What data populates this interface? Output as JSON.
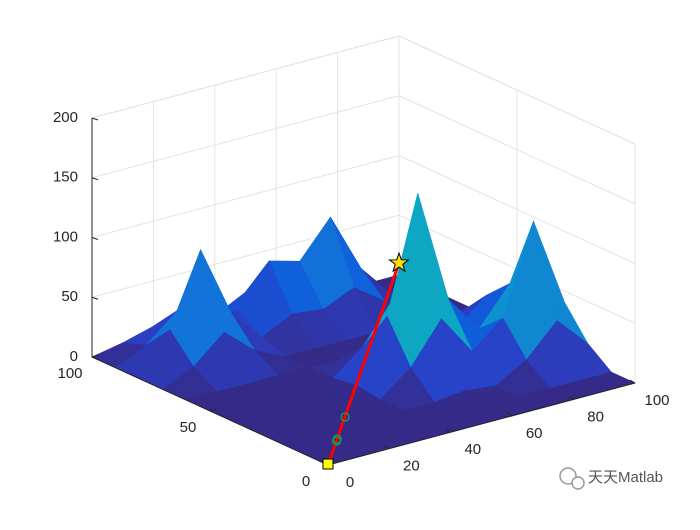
{
  "chart_data": {
    "type": "surface3d",
    "xlim": [
      0,
      100
    ],
    "ylim": [
      0,
      100
    ],
    "zlim": [
      0,
      200
    ],
    "xticks": [
      0,
      20,
      40,
      60,
      80,
      100
    ],
    "yticks": [
      0,
      50,
      100
    ],
    "zticks": [
      0,
      50,
      100,
      150,
      200
    ],
    "grid": true,
    "colormap": [
      "#352a87",
      "#2b3fc4",
      "#0f5cdd",
      "#1481d4",
      "#06a4ca",
      "#2eb7a4",
      "#87bf77",
      "#d1bb59",
      "#fec832",
      "#f9fb0e"
    ],
    "surface": {
      "x": [
        0,
        10,
        20,
        30,
        40,
        50,
        60,
        70,
        80,
        90,
        100
      ],
      "y": [
        0,
        10,
        20,
        30,
        40,
        50,
        60,
        70,
        80,
        90,
        100
      ],
      "z": [
        [
          0,
          0,
          0,
          0,
          0,
          0,
          0,
          0,
          0,
          0,
          0
        ],
        [
          0,
          0,
          0,
          0,
          0,
          0,
          0,
          0,
          0,
          0,
          0
        ],
        [
          0,
          0,
          0,
          0,
          0,
          0,
          3,
          0,
          15,
          41,
          15
        ],
        [
          0,
          0,
          0,
          0,
          0,
          20,
          54,
          20,
          41,
          115,
          41
        ],
        [
          0,
          0,
          0,
          0,
          3,
          54,
          150,
          54,
          23,
          54,
          20
        ],
        [
          0,
          0,
          0,
          0,
          0,
          20,
          54,
          20,
          13,
          35,
          13
        ],
        [
          0,
          0,
          0,
          0,
          0,
          0,
          3,
          0,
          5,
          13,
          5
        ],
        [
          0,
          12,
          34,
          12,
          0,
          0,
          0,
          0,
          0,
          0,
          0
        ],
        [
          0,
          34,
          94,
          34,
          7,
          20,
          17,
          28,
          10,
          0,
          0
        ],
        [
          0,
          12,
          34,
          12,
          20,
          55,
          48,
          78,
          28,
          0,
          0
        ],
        [
          0,
          5,
          12,
          5,
          7,
          20,
          17,
          28,
          10,
          0,
          0
        ]
      ]
    },
    "path": {
      "color": "#ff0000",
      "x": [
        0,
        100
      ],
      "y": [
        0,
        100
      ],
      "z": [
        0,
        10
      ]
    },
    "waypoints": {
      "color": "#00b050",
      "x": [
        24,
        13,
        12
      ],
      "y": [
        24,
        13,
        12
      ],
      "z": [
        2,
        1,
        1
      ]
    },
    "start": {
      "color": "#ffff00",
      "x": 0,
      "y": 0,
      "z": 0
    },
    "goal": {
      "color": "#ffdd00",
      "x": 100,
      "y": 100,
      "z": 10
    },
    "watermark": "天天Matlab"
  }
}
